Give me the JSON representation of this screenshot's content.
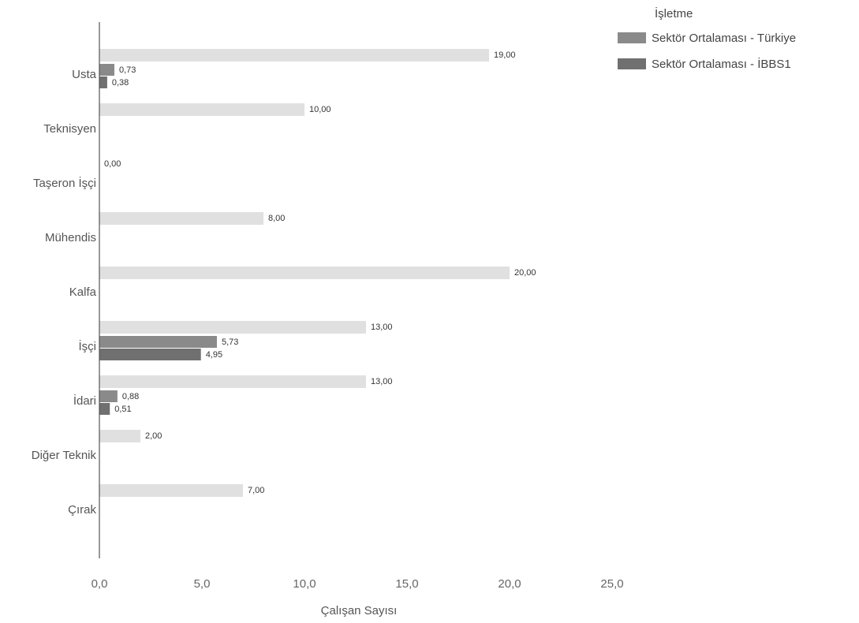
{
  "chart_data": {
    "type": "bar",
    "orientation": "horizontal",
    "categories": [
      "Usta",
      "Teknisyen",
      "Taşeron İşçi",
      "Mühendis",
      "Kalfa",
      "İşçi",
      "İdari",
      "Diğer Teknik",
      "Çırak"
    ],
    "series": [
      {
        "name": "İşletme",
        "values": [
          19.0,
          10.0,
          0.0,
          8.0,
          20.0,
          13.0,
          13.0,
          2.0,
          7.0
        ],
        "value_labels": [
          "19,00",
          "10,00",
          "0,00",
          "8,00",
          "20,00",
          "13,00",
          "13,00",
          "2,00",
          "7,00"
        ],
        "color": "#d6d6d6"
      },
      {
        "name": "Sektör Ortalaması - Türkiye",
        "values": [
          0.73,
          null,
          null,
          null,
          null,
          5.73,
          0.88,
          null,
          null
        ],
        "value_labels": [
          "0,73",
          null,
          null,
          null,
          null,
          "5,73",
          "0,88",
          null,
          null
        ],
        "color": "#8a8a8a"
      },
      {
        "name": "Sektör Ortalaması - İBBS1",
        "values": [
          0.38,
          null,
          null,
          null,
          null,
          4.95,
          0.51,
          null,
          null
        ],
        "value_labels": [
          "0,38",
          null,
          null,
          null,
          null,
          "4,95",
          "0,51",
          null,
          null
        ],
        "color": "#707070"
      }
    ],
    "xlabel": "Çalışan Sayısı",
    "ylabel": "",
    "xlim": [
      0,
      25
    ],
    "xticks": [
      0,
      5,
      10,
      15,
      20,
      25
    ],
    "xtick_labels": [
      "0,0",
      "5,0",
      "10,0",
      "15,0",
      "20,0",
      "25,0"
    ],
    "legend_title": "İşletme",
    "legend_entries": [
      "Sektör Ortalaması - Türkiye",
      "Sektör Ortalaması - İBBS1"
    ],
    "legend_position": "top-right",
    "grid": false
  }
}
